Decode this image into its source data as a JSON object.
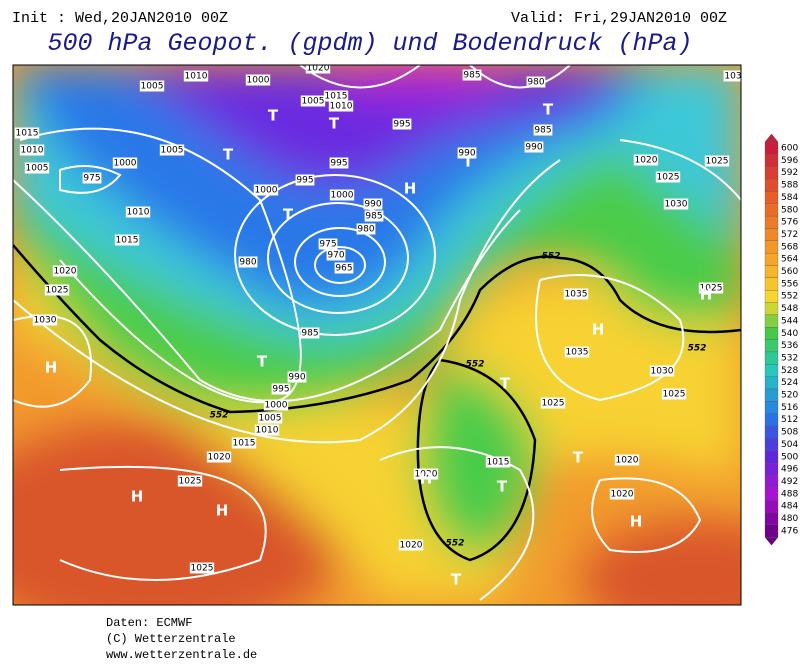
{
  "header": {
    "init": "Init : Wed,20JAN2010 00Z",
    "valid": "Valid: Fri,29JAN2010 00Z",
    "title": "500 hPa Geopot. (gpdm) und Bodendruck (hPa)"
  },
  "legend": {
    "labels": [
      "600",
      "596",
      "592",
      "588",
      "584",
      "580",
      "576",
      "572",
      "568",
      "564",
      "560",
      "556",
      "552",
      "548",
      "544",
      "540",
      "536",
      "532",
      "528",
      "524",
      "520",
      "516",
      "512",
      "508",
      "504",
      "500",
      "496",
      "492",
      "488",
      "484",
      "480",
      "476"
    ]
  },
  "map": {
    "pressure_labels": [
      "1010",
      "1000",
      "1020",
      "1005",
      "1015",
      "1010",
      "985",
      "980",
      "1005",
      "995",
      "985",
      "990",
      "990",
      "995",
      "995",
      "1000",
      "1000",
      "990",
      "985",
      "980",
      "975",
      "970",
      "965",
      "980",
      "985",
      "990",
      "995",
      "1000",
      "1005",
      "1010",
      "1015",
      "1020",
      "1025",
      "1025",
      "1010",
      "1015",
      "1020",
      "1025",
      "1030",
      "1015",
      "1010",
      "1005",
      "975",
      "1000",
      "1005",
      "1020",
      "1025",
      "1025",
      "1030",
      "1035",
      "1035",
      "1025",
      "1030",
      "1025",
      "1020",
      "1020",
      "1015",
      "1020",
      "1020",
      "1025",
      "103"
    ],
    "geopotential_labels": [
      "552",
      "552",
      "552",
      "552",
      "552"
    ],
    "high_labels": [
      "H",
      "H",
      "H",
      "H",
      "H",
      "H",
      "H",
      "H"
    ],
    "low_labels": [
      "T",
      "T",
      "T",
      "T",
      "T",
      "T",
      "T",
      "T",
      "T",
      "T",
      "T"
    ]
  },
  "footer": [
    "Daten: ECMWF",
    "(C) Wetterzentrale",
    "www.wetterzentrale.de"
  ]
}
